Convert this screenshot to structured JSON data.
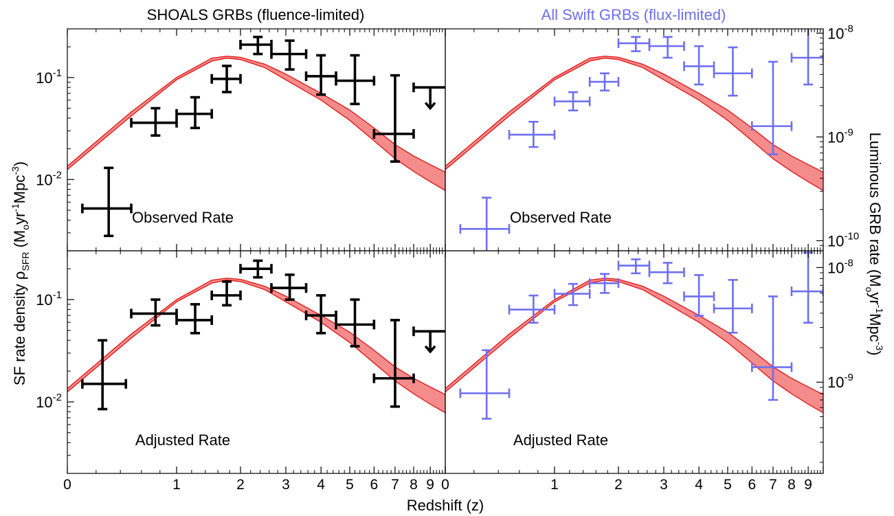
{
  "figure": {
    "title_left": "SHOALS GRBs (fluence-limited)",
    "title_right": "All Swift GRBs (flux-limited)",
    "xlabel": "Redshift (z)",
    "ylabel_left_main": "SF rate density ρ",
    "ylabel_left_sub": "SFR",
    "ylabel_left_units_a": " (M",
    "ylabel_left_units_b": "o",
    "ylabel_left_units_c": "yr",
    "ylabel_left_units_d": "-1",
    "ylabel_left_units_e": "Mpc",
    "ylabel_left_units_f": "-3",
    "ylabel_left_units_g": ")",
    "ylabel_right_main": "Luminous GRB rate (M",
    "ylabel_right_units_b": "o",
    "ylabel_right_units_c": "yr",
    "ylabel_right_units_d": "-1",
    "ylabel_right_units_e": "Mpc",
    "ylabel_right_units_f": "-3",
    "ylabel_right_units_g": ")",
    "colors": {
      "shoals": "#000000",
      "swift": "#6e6ef0",
      "sfr_band_fill": "#f58c8c",
      "sfr_band_edge": "#e01010"
    }
  },
  "chart_data": [
    {
      "panel": "top-left",
      "type": "scatter",
      "annotation": "Observed Rate",
      "yscale": "log",
      "ylim": [
        0.002,
        0.3
      ],
      "yticks": [
        {
          "base": "10",
          "exp": "-1",
          "value": 0.1
        },
        {
          "base": "10",
          "exp": "-2",
          "value": 0.01
        }
      ],
      "xscale": "log(1+z)",
      "xlim": [
        0,
        10
      ],
      "xticks": [
        "0",
        "1",
        "2",
        "3",
        "4",
        "5",
        "6",
        "7",
        "8",
        "9"
      ],
      "sfr_band": {
        "z": [
          0,
          0.5,
          1,
          1.5,
          1.75,
          2,
          2.5,
          3,
          4,
          5,
          6,
          7,
          8,
          9,
          10
        ],
        "low": [
          0.0125,
          0.042,
          0.095,
          0.145,
          0.155,
          0.15,
          0.125,
          0.095,
          0.06,
          0.038,
          0.024,
          0.016,
          0.012,
          0.0095,
          0.0078
        ],
        "high": [
          0.0135,
          0.046,
          0.1,
          0.155,
          0.162,
          0.158,
          0.135,
          0.108,
          0.07,
          0.048,
          0.032,
          0.022,
          0.017,
          0.014,
          0.0118
        ]
      },
      "points": [
        {
          "z": 0.3,
          "zlo": 0.1,
          "zhi": 0.5,
          "y": 0.0052,
          "ylo": 0.0028,
          "yhi": 0.013
        },
        {
          "z": 0.75,
          "zlo": 0.5,
          "zhi": 1.0,
          "y": 0.036,
          "ylo": 0.027,
          "yhi": 0.05
        },
        {
          "z": 1.25,
          "zlo": 1.0,
          "zhi": 1.5,
          "y": 0.044,
          "ylo": 0.032,
          "yhi": 0.064
        },
        {
          "z": 1.75,
          "zlo": 1.5,
          "zhi": 2.0,
          "y": 0.097,
          "ylo": 0.072,
          "yhi": 0.13
        },
        {
          "z": 2.35,
          "zlo": 2.0,
          "zhi": 2.65,
          "y": 0.21,
          "ylo": 0.17,
          "yhi": 0.25
        },
        {
          "z": 3.1,
          "zlo": 2.65,
          "zhi": 3.55,
          "y": 0.17,
          "ylo": 0.12,
          "yhi": 0.23
        },
        {
          "z": 4.0,
          "zlo": 3.55,
          "zhi": 4.5,
          "y": 0.103,
          "ylo": 0.068,
          "yhi": 0.165
        },
        {
          "z": 5.2,
          "zlo": 4.5,
          "zhi": 6.0,
          "y": 0.093,
          "ylo": 0.055,
          "yhi": 0.165
        },
        {
          "z": 7.0,
          "zlo": 6.0,
          "zhi": 8.0,
          "y": 0.028,
          "ylo": 0.015,
          "yhi": 0.105
        }
      ],
      "upper_limit": {
        "z": 9.0,
        "zlo": 8.0,
        "zhi": 10.0,
        "y": 0.08,
        "arrow_to": 0.05
      }
    },
    {
      "panel": "top-right",
      "type": "scatter",
      "annotation": "Observed Rate",
      "yscale": "log",
      "ylim": [
        8e-11,
        1.1e-08
      ],
      "yticks": [
        {
          "base": "10",
          "exp": "-8",
          "value": 1e-08
        },
        {
          "base": "10",
          "exp": "-9",
          "value": 1e-09
        },
        {
          "base": "10",
          "exp": "-10",
          "value": 1e-10
        }
      ],
      "xscale": "log(1+z)",
      "xlim": [
        0,
        10
      ],
      "xticks": [
        "0",
        "1",
        "2",
        "3",
        "4",
        "5",
        "6",
        "7",
        "8",
        "9"
      ],
      "sfr_band": {
        "z": [
          0,
          0.5,
          1,
          1.5,
          1.75,
          2,
          2.5,
          3,
          4,
          5,
          6,
          7,
          8,
          9,
          10
        ],
        "low": [
          0.0125,
          0.042,
          0.095,
          0.145,
          0.155,
          0.15,
          0.125,
          0.095,
          0.06,
          0.038,
          0.024,
          0.016,
          0.012,
          0.0095,
          0.0078
        ],
        "high": [
          0.0135,
          0.046,
          0.1,
          0.155,
          0.162,
          0.158,
          0.135,
          0.108,
          0.07,
          0.048,
          0.032,
          0.022,
          0.017,
          0.014,
          0.0118
        ]
      },
      "points": [
        {
          "z": 0.3,
          "zlo": 0.1,
          "zhi": 0.5,
          "y": 1.3e-10,
          "ylo": 7e-11,
          "yhi": 2.6e-10
        },
        {
          "z": 0.75,
          "zlo": 0.5,
          "zhi": 1.0,
          "y": 1.05e-09,
          "ylo": 8e-10,
          "yhi": 1.4e-09
        },
        {
          "z": 1.25,
          "zlo": 1.0,
          "zhi": 1.5,
          "y": 2.2e-09,
          "ylo": 1.8e-09,
          "yhi": 2.7e-09
        },
        {
          "z": 1.75,
          "zlo": 1.5,
          "zhi": 2.0,
          "y": 3.4e-09,
          "ylo": 2.8e-09,
          "yhi": 4.1e-09
        },
        {
          "z": 2.35,
          "zlo": 2.0,
          "zhi": 2.65,
          "y": 8e-09,
          "ylo": 6.7e-09,
          "yhi": 9.2e-09
        },
        {
          "z": 3.1,
          "zlo": 2.65,
          "zhi": 3.55,
          "y": 7.5e-09,
          "ylo": 5.8e-09,
          "yhi": 9.2e-09
        },
        {
          "z": 4.0,
          "zlo": 3.55,
          "zhi": 4.5,
          "y": 4.8e-09,
          "ylo": 3.2e-09,
          "yhi": 7.5e-09
        },
        {
          "z": 5.2,
          "zlo": 4.5,
          "zhi": 6.0,
          "y": 4.1e-09,
          "ylo": 2.5e-09,
          "yhi": 7.3e-09
        },
        {
          "z": 7.0,
          "zlo": 6.0,
          "zhi": 8.0,
          "y": 1.27e-09,
          "ylo": 6.8e-10,
          "yhi": 5.3e-09
        },
        {
          "z": 9.0,
          "zlo": 8.0,
          "zhi": 10.0,
          "y": 5.8e-09,
          "ylo": 3.2e-09,
          "yhi": 1.2e-08
        }
      ]
    },
    {
      "panel": "bottom-left",
      "type": "scatter",
      "annotation": "Adjusted Rate",
      "yscale": "log",
      "ylim": [
        0.002,
        0.3
      ],
      "yticks": [
        {
          "base": "10",
          "exp": "-1",
          "value": 0.1
        },
        {
          "base": "10",
          "exp": "-2",
          "value": 0.01
        }
      ],
      "xscale": "log(1+z)",
      "xlim": [
        0,
        10
      ],
      "xticks": [
        "0",
        "1",
        "2",
        "3",
        "4",
        "5",
        "6",
        "7",
        "8",
        "9"
      ],
      "sfr_band": {
        "z": [
          0,
          0.5,
          1,
          1.5,
          1.75,
          2,
          2.5,
          3,
          4,
          5,
          6,
          7,
          8,
          9,
          10
        ],
        "low": [
          0.0125,
          0.042,
          0.095,
          0.145,
          0.155,
          0.15,
          0.125,
          0.095,
          0.06,
          0.038,
          0.024,
          0.016,
          0.012,
          0.0095,
          0.0078
        ],
        "high": [
          0.0135,
          0.046,
          0.1,
          0.155,
          0.162,
          0.158,
          0.135,
          0.108,
          0.07,
          0.048,
          0.032,
          0.022,
          0.017,
          0.014,
          0.0118
        ]
      },
      "points": [
        {
          "z": 0.25,
          "zlo": 0.1,
          "zhi": 0.45,
          "y": 0.015,
          "ylo": 0.0085,
          "yhi": 0.04
        },
        {
          "z": 0.75,
          "zlo": 0.5,
          "zhi": 1.0,
          "y": 0.073,
          "ylo": 0.056,
          "yhi": 0.1
        },
        {
          "z": 1.25,
          "zlo": 1.0,
          "zhi": 1.5,
          "y": 0.063,
          "ylo": 0.047,
          "yhi": 0.09
        },
        {
          "z": 1.75,
          "zlo": 1.5,
          "zhi": 2.0,
          "y": 0.11,
          "ylo": 0.088,
          "yhi": 0.15
        },
        {
          "z": 2.35,
          "zlo": 2.0,
          "zhi": 2.65,
          "y": 0.2,
          "ylo": 0.165,
          "yhi": 0.24
        },
        {
          "z": 3.1,
          "zlo": 2.65,
          "zhi": 3.55,
          "y": 0.13,
          "ylo": 0.1,
          "yhi": 0.175
        },
        {
          "z": 4.0,
          "zlo": 3.55,
          "zhi": 4.5,
          "y": 0.07,
          "ylo": 0.047,
          "yhi": 0.11
        },
        {
          "z": 5.2,
          "zlo": 4.5,
          "zhi": 6.0,
          "y": 0.057,
          "ylo": 0.035,
          "yhi": 0.1
        },
        {
          "z": 7.0,
          "zlo": 6.0,
          "zhi": 8.0,
          "y": 0.017,
          "ylo": 0.009,
          "yhi": 0.063
        }
      ],
      "upper_limit": {
        "z": 9.0,
        "zlo": 8.0,
        "zhi": 10.0,
        "y": 0.049,
        "arrow_to": 0.031
      }
    },
    {
      "panel": "bottom-right",
      "type": "scatter",
      "annotation": "Adjusted Rate",
      "yscale": "log",
      "ylim": [
        1.6e-10,
        1.4e-08
      ],
      "yticks": [
        {
          "base": "10",
          "exp": "-8",
          "value": 1e-08
        },
        {
          "base": "10",
          "exp": "-9",
          "value": 1e-09
        }
      ],
      "xscale": "log(1+z)",
      "xlim": [
        0,
        10
      ],
      "xticks": [
        "0",
        "1",
        "2",
        "3",
        "4",
        "5",
        "6",
        "7",
        "8",
        "9"
      ],
      "sfr_band": {
        "z": [
          0,
          0.5,
          1,
          1.5,
          1.75,
          2,
          2.5,
          3,
          4,
          5,
          6,
          7,
          8,
          9,
          10
        ],
        "low": [
          0.0125,
          0.042,
          0.095,
          0.145,
          0.155,
          0.15,
          0.125,
          0.095,
          0.06,
          0.038,
          0.024,
          0.016,
          0.012,
          0.0095,
          0.0078
        ],
        "high": [
          0.0135,
          0.046,
          0.1,
          0.155,
          0.162,
          0.158,
          0.135,
          0.108,
          0.07,
          0.048,
          0.032,
          0.022,
          0.017,
          0.014,
          0.0118
        ]
      },
      "points": [
        {
          "z": 0.3,
          "zlo": 0.1,
          "zhi": 0.5,
          "y": 8e-10,
          "ylo": 4.8e-10,
          "yhi": 1.9e-09
        },
        {
          "z": 0.75,
          "zlo": 0.5,
          "zhi": 1.0,
          "y": 4.3e-09,
          "ylo": 3.3e-09,
          "yhi": 5.7e-09
        },
        {
          "z": 1.25,
          "zlo": 1.0,
          "zhi": 1.5,
          "y": 5.9e-09,
          "ylo": 4.7e-09,
          "yhi": 7.2e-09
        },
        {
          "z": 1.75,
          "zlo": 1.5,
          "zhi": 2.0,
          "y": 7.3e-09,
          "ylo": 6e-09,
          "yhi": 8.8e-09
        },
        {
          "z": 2.35,
          "zlo": 2.0,
          "zhi": 2.65,
          "y": 1.04e-08,
          "ylo": 8.9e-09,
          "yhi": 1.18e-08
        },
        {
          "z": 3.1,
          "zlo": 2.65,
          "zhi": 3.55,
          "y": 9.1e-09,
          "ylo": 7.3e-09,
          "yhi": 1.1e-08
        },
        {
          "z": 4.0,
          "zlo": 3.55,
          "zhi": 4.5,
          "y": 5.6e-09,
          "ylo": 3.8e-09,
          "yhi": 8.6e-09
        },
        {
          "z": 5.2,
          "zlo": 4.5,
          "zhi": 6.0,
          "y": 4.4e-09,
          "ylo": 2.7e-09,
          "yhi": 7.8e-09
        },
        {
          "z": 7.0,
          "zlo": 6.0,
          "zhi": 8.0,
          "y": 1.35e-09,
          "ylo": 7e-10,
          "yhi": 5.6e-09
        },
        {
          "z": 9.0,
          "zlo": 8.0,
          "zhi": 10.0,
          "y": 6.2e-09,
          "ylo": 3.3e-09,
          "yhi": 1.35e-08
        }
      ]
    }
  ]
}
